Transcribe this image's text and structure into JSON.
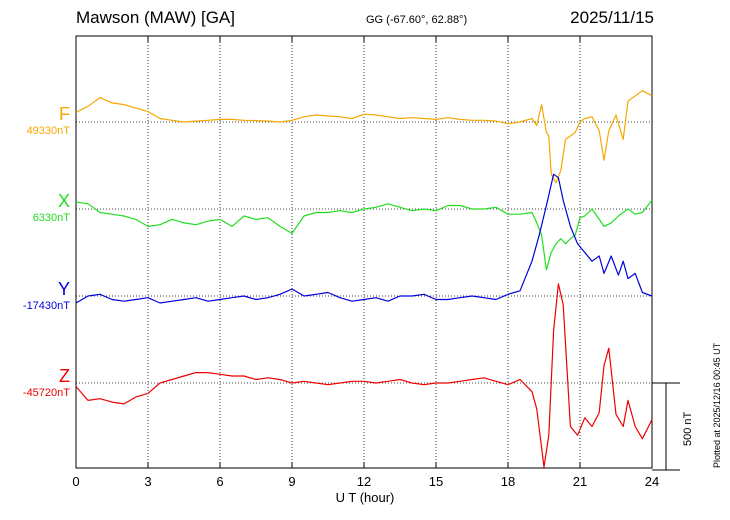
{
  "header": {
    "station": "Mawson (MAW)  [GA]",
    "coords": "GG (-67.60°,  62.88°)",
    "date": "2025/11/15"
  },
  "components": [
    {
      "letter": "F",
      "baseline": "49330nT",
      "color": "#f5a800"
    },
    {
      "letter": "X",
      "baseline": "6330nT",
      "color": "#22dd22"
    },
    {
      "letter": "Y",
      "baseline": "-17430nT",
      "color": "#0000dd"
    },
    {
      "letter": "Z",
      "baseline": "-45720nT",
      "color": "#ee0000"
    }
  ],
  "footer": {
    "xlabel": "U T (hour)",
    "plotted": "Plotted at 2025/12/16 00:45 UT",
    "scale_label": "500 nT"
  },
  "chart_data": {
    "type": "line",
    "title": "Mawson (MAW)  [GA]",
    "xlabel": "U T (hour)",
    "ylabel": "",
    "xlim": [
      0,
      24
    ],
    "x_ticks": [
      0,
      3,
      6,
      9,
      12,
      15,
      18,
      21,
      24
    ],
    "grid": true,
    "scale_bar_nT": 500,
    "y_unit": "nT offset from baseline",
    "series": [
      {
        "name": "F",
        "baseline_nT": 49330,
        "color": "#f5a800",
        "x": [
          0,
          0.5,
          1,
          1.5,
          2,
          2.5,
          3,
          3.5,
          4,
          4.5,
          5,
          5.5,
          6,
          6.5,
          7,
          7.5,
          8,
          8.5,
          9,
          9.5,
          10,
          10.5,
          11,
          11.5,
          12,
          12.5,
          13,
          13.5,
          14,
          14.5,
          15,
          15.5,
          16,
          16.5,
          17,
          17.5,
          18,
          18.5,
          19,
          19.2,
          19.4,
          19.6,
          19.7,
          19.8,
          20,
          20.2,
          20.4,
          20.6,
          20.8,
          21,
          21.2,
          21.5,
          21.8,
          22,
          22.2,
          22.5,
          22.8,
          23,
          23.3,
          23.6,
          24
        ],
        "y": [
          55,
          90,
          140,
          110,
          100,
          80,
          60,
          20,
          10,
          0,
          5,
          10,
          15,
          15,
          10,
          8,
          5,
          0,
          10,
          30,
          40,
          35,
          30,
          20,
          45,
          40,
          30,
          20,
          25,
          20,
          15,
          25,
          15,
          10,
          10,
          5,
          -10,
          0,
          20,
          -20,
          100,
          -60,
          -80,
          -300,
          -350,
          -280,
          -100,
          -80,
          -60,
          0,
          20,
          30,
          -50,
          -220,
          -50,
          40,
          -100,
          120,
          150,
          180,
          150
        ]
      },
      {
        "name": "X",
        "baseline_nT": 6330,
        "color": "#22dd22",
        "x": [
          0,
          0.5,
          1,
          1.5,
          2,
          2.5,
          3,
          3.5,
          4,
          4.5,
          5,
          5.5,
          6,
          6.5,
          7,
          7.5,
          8,
          8.5,
          9,
          9.5,
          10,
          10.5,
          11,
          11.5,
          12,
          12.5,
          13,
          13.5,
          14,
          14.5,
          15,
          15.5,
          16,
          16.5,
          17,
          17.5,
          18,
          18.5,
          19,
          19.2,
          19.4,
          19.6,
          19.8,
          20,
          20.2,
          20.4,
          20.6,
          20.8,
          21,
          21.2,
          21.5,
          21.8,
          22,
          22.3,
          22.6,
          23,
          23.3,
          23.6,
          24
        ],
        "y": [
          40,
          30,
          -20,
          -30,
          -40,
          -60,
          -100,
          -90,
          -60,
          -80,
          -90,
          -70,
          -60,
          -100,
          -40,
          -60,
          -50,
          -100,
          -140,
          -40,
          -20,
          -20,
          -10,
          -20,
          0,
          10,
          30,
          10,
          -10,
          0,
          -10,
          20,
          20,
          0,
          0,
          10,
          -30,
          -30,
          -20,
          -80,
          -150,
          -350,
          -250,
          -200,
          -170,
          -200,
          -170,
          -150,
          -50,
          -40,
          0,
          -60,
          -100,
          -80,
          -40,
          0,
          -30,
          -20,
          50
        ]
      },
      {
        "name": "Y",
        "baseline_nT": -17430,
        "color": "#0000dd",
        "x": [
          0,
          0.5,
          1,
          1.5,
          2,
          2.5,
          3,
          3.5,
          4,
          4.5,
          5,
          5.5,
          6,
          6.5,
          7,
          7.5,
          8,
          8.5,
          9,
          9.5,
          10,
          10.5,
          11,
          11.5,
          12,
          12.5,
          13,
          13.5,
          14,
          14.5,
          15,
          15.5,
          16,
          16.5,
          17,
          17.5,
          18,
          18.5,
          19,
          19.3,
          19.6,
          19.9,
          20.1,
          20.3,
          20.6,
          20.9,
          21.2,
          21.5,
          21.8,
          22,
          22.3,
          22.6,
          22.8,
          23,
          23.3,
          23.6,
          24
        ],
        "y": [
          -40,
          0,
          10,
          -20,
          -30,
          -20,
          -10,
          -40,
          -30,
          -20,
          -10,
          -30,
          -20,
          -10,
          0,
          -20,
          -10,
          10,
          40,
          0,
          10,
          20,
          -10,
          -30,
          -20,
          -10,
          -30,
          0,
          0,
          10,
          -20,
          -20,
          -10,
          0,
          -10,
          -20,
          10,
          30,
          200,
          350,
          520,
          700,
          680,
          550,
          400,
          300,
          250,
          200,
          230,
          130,
          230,
          120,
          200,
          100,
          130,
          20,
          0
        ]
      },
      {
        "name": "Z",
        "baseline_nT": -45720,
        "color": "#ee0000",
        "x": [
          0,
          0.5,
          1,
          1.5,
          2,
          2.5,
          3,
          3.5,
          4,
          4.5,
          5,
          5.5,
          6,
          6.5,
          7,
          7.5,
          8,
          8.5,
          9,
          9.5,
          10,
          10.5,
          11,
          11.5,
          12,
          12.5,
          13,
          13.5,
          14,
          14.5,
          15,
          15.5,
          16,
          16.5,
          17,
          17.5,
          18,
          18.5,
          19,
          19.2,
          19.5,
          19.7,
          19.9,
          20.1,
          20.3,
          20.6,
          20.9,
          21.2,
          21.5,
          21.8,
          22,
          22.2,
          22.5,
          22.8,
          23,
          23.3,
          23.6,
          24
        ],
        "y": [
          -20,
          -100,
          -90,
          -110,
          -120,
          -80,
          -60,
          0,
          20,
          40,
          60,
          60,
          50,
          40,
          40,
          20,
          30,
          20,
          0,
          10,
          0,
          -10,
          0,
          10,
          10,
          0,
          10,
          20,
          0,
          -10,
          0,
          0,
          10,
          20,
          30,
          10,
          -10,
          20,
          -50,
          -150,
          -500,
          -300,
          300,
          570,
          450,
          -250,
          -300,
          -200,
          -250,
          -170,
          100,
          200,
          -180,
          -250,
          -100,
          -250,
          -320,
          -210
        ]
      }
    ]
  }
}
